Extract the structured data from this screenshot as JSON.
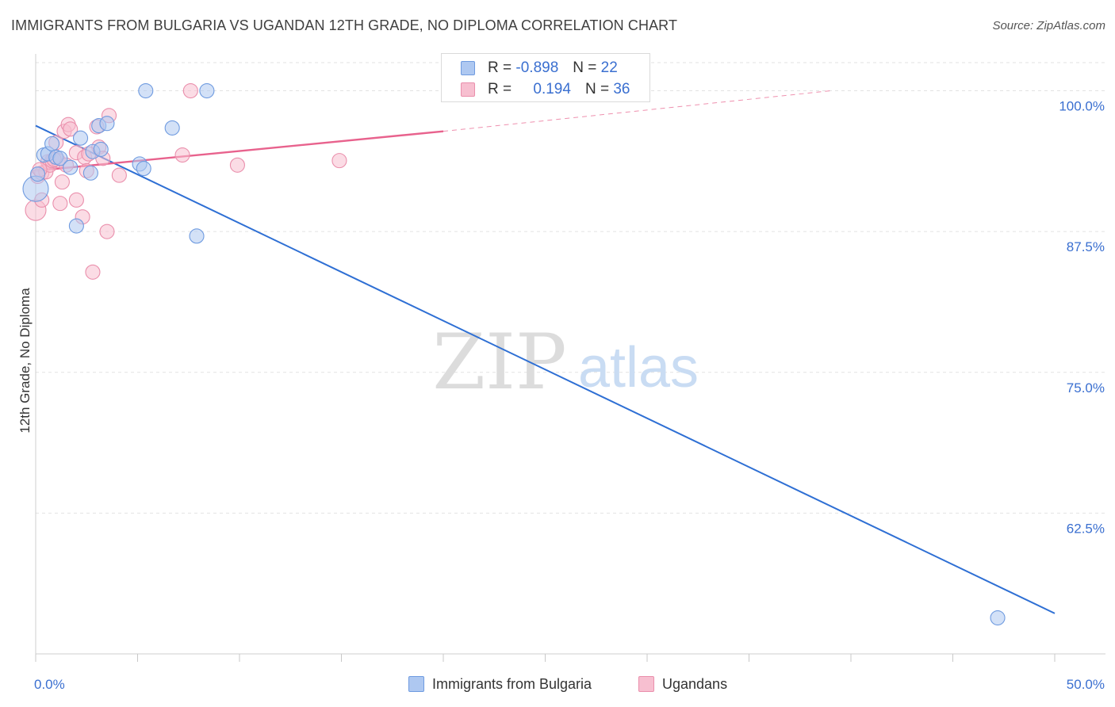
{
  "title": "IMMIGRANTS FROM BULGARIA VS UGANDAN 12TH GRADE, NO DIPLOMA CORRELATION CHART",
  "source": "Source: ZipAtlas.com",
  "watermark": {
    "zip": "ZIP",
    "atlas": "atlas"
  },
  "legend": {
    "r_label": "R =",
    "n_label": "N =",
    "items": [
      {
        "r": "-0.898",
        "n": "22"
      },
      {
        "r": "0.194",
        "n": "36"
      }
    ]
  },
  "bottom_legend": [
    "Immigrants from Bulgaria",
    "Ugandans"
  ],
  "chart_data": {
    "type": "scatter",
    "title": "IMMIGRANTS FROM BULGARIA VS UGANDAN 12TH GRADE, NO DIPLOMA CORRELATION CHART",
    "xlabel": "",
    "ylabel": "12th Grade, No Diploma",
    "xlim": [
      0,
      50
    ],
    "ylim": [
      50,
      102.5
    ],
    "x_tick_labels": [
      "0.0%",
      "50.0%"
    ],
    "y_ticks": [
      62.5,
      75.0,
      87.5,
      100.0
    ],
    "y_tick_labels": [
      "62.5%",
      "75.0%",
      "87.5%",
      "100.0%"
    ],
    "colors": {
      "bulgaria_fill": "#aec8f1",
      "bulgaria_stroke": "#6f9be0",
      "bulgaria_line": "#2e6fd4",
      "ugandan_fill": "#f7bfd0",
      "ugandan_stroke": "#ea8fac",
      "ugandan_line": "#e8628d",
      "axis_label": "#3a6fd0",
      "grid": "#e2e2e2"
    },
    "series": [
      {
        "name": "Immigrants from Bulgaria",
        "r": -0.898,
        "n": 22,
        "points": [
          [
            0.0,
            91.3
          ],
          [
            0.4,
            94.3
          ],
          [
            0.6,
            94.4
          ],
          [
            0.8,
            95.3
          ],
          [
            1.0,
            94.1
          ],
          [
            1.2,
            94.0
          ],
          [
            1.7,
            93.2
          ],
          [
            2.0,
            88.0
          ],
          [
            2.2,
            95.8
          ],
          [
            2.7,
            92.7
          ],
          [
            2.8,
            94.6
          ],
          [
            3.1,
            96.9
          ],
          [
            3.2,
            94.8
          ],
          [
            3.5,
            97.1
          ],
          [
            5.1,
            93.5
          ],
          [
            5.3,
            93.1
          ],
          [
            5.4,
            100.0
          ],
          [
            6.7,
            96.7
          ],
          [
            7.9,
            87.1
          ],
          [
            8.4,
            100.0
          ],
          [
            47.2,
            53.2
          ],
          [
            0.1,
            92.6
          ]
        ],
        "point_sizes": [
          16,
          9,
          9,
          9,
          9,
          9,
          9,
          9,
          9,
          9,
          9,
          9,
          9,
          9,
          9,
          9,
          9,
          9,
          9,
          9,
          9,
          9
        ],
        "trend": {
          "x": [
            0.0,
            50.0
          ],
          "y": [
            96.9,
            53.6
          ]
        }
      },
      {
        "name": "Ugandans",
        "r": 0.194,
        "n": 36,
        "points": [
          [
            0.0,
            89.4
          ],
          [
            0.1,
            92.4
          ],
          [
            0.3,
            92.7
          ],
          [
            0.3,
            90.3
          ],
          [
            0.5,
            92.8
          ],
          [
            0.6,
            93.7
          ],
          [
            0.7,
            93.4
          ],
          [
            0.8,
            93.8
          ],
          [
            1.0,
            95.4
          ],
          [
            1.0,
            94.1
          ],
          [
            1.1,
            93.8
          ],
          [
            1.2,
            90.0
          ],
          [
            1.3,
            91.9
          ],
          [
            1.4,
            96.4
          ],
          [
            1.6,
            97.0
          ],
          [
            1.7,
            96.6
          ],
          [
            2.0,
            94.5
          ],
          [
            2.0,
            90.3
          ],
          [
            2.3,
            88.8
          ],
          [
            2.4,
            94.1
          ],
          [
            2.5,
            92.9
          ],
          [
            2.8,
            83.9
          ],
          [
            3.0,
            96.8
          ],
          [
            3.1,
            95.0
          ],
          [
            3.3,
            94.0
          ],
          [
            3.5,
            87.5
          ],
          [
            3.6,
            97.8
          ],
          [
            4.1,
            92.5
          ],
          [
            7.2,
            94.3
          ],
          [
            7.6,
            100.0
          ],
          [
            9.9,
            93.4
          ],
          [
            14.9,
            93.8
          ],
          [
            0.2,
            93.0
          ],
          [
            0.9,
            93.9
          ],
          [
            1.5,
            93.4
          ],
          [
            2.6,
            94.4
          ]
        ],
        "point_sizes": [
          13,
          9,
          9,
          9,
          9,
          9,
          9,
          9,
          9,
          9,
          9,
          9,
          9,
          9,
          9,
          9,
          9,
          9,
          9,
          9,
          9,
          9,
          9,
          9,
          9,
          9,
          9,
          9,
          9,
          9,
          9,
          9,
          9,
          9,
          9,
          9
        ],
        "trend": {
          "x": [
            0.0,
            20.0
          ],
          "y": [
            92.9,
            96.4
          ]
        },
        "trend_extension": {
          "x": [
            20.0,
            39.0
          ],
          "y": [
            96.4,
            100.0
          ]
        }
      }
    ]
  }
}
